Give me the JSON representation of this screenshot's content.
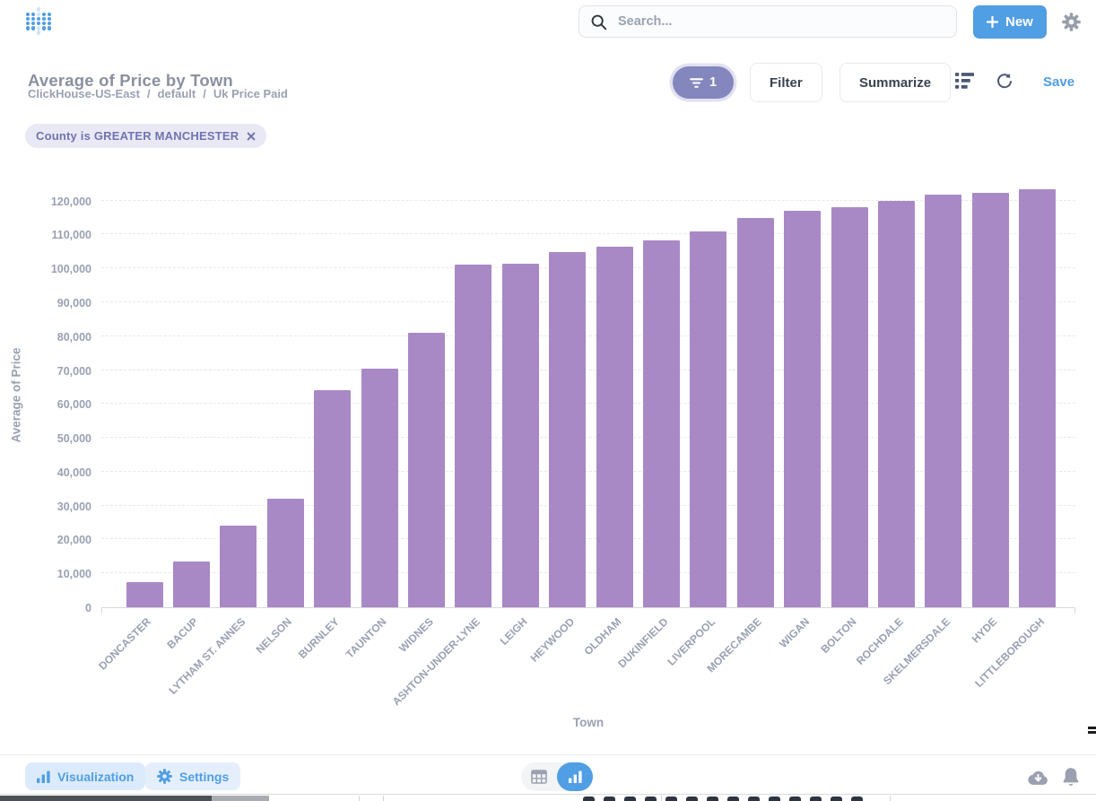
{
  "topnav": {
    "search_placeholder": "Search...",
    "new_button": "New"
  },
  "header": {
    "title": "Average of Price by Town",
    "breadcrumb": {
      "database": "ClickHouse-US-East",
      "schema": "default",
      "table": "Uk Price Paid"
    },
    "breadcrumb_sep": "/",
    "filter_count": "1",
    "filter_button": "Filter",
    "summarize_button": "Summarize",
    "save_button": "Save"
  },
  "filters": [
    {
      "label": "County is GREATER MANCHESTER"
    }
  ],
  "chart_data": {
    "type": "bar",
    "title": "Average of Price by Town",
    "xlabel": "Town",
    "ylabel": "Average of Price",
    "categories": [
      "DONCASTER",
      "BACUP",
      "LYTHAM ST. ANNES",
      "NELSON",
      "BURNLEY",
      "TAUNTON",
      "WIDNES",
      "ASHTON-UNDER-LYNE",
      "LEIGH",
      "HEYWOOD",
      "OLDHAM",
      "DUKINFIELD",
      "LIVERPOOL",
      "MORECAMBE",
      "WIGAN",
      "BOLTON",
      "ROCHDALE",
      "SKELMERSDALE",
      "HYDE",
      "LITTLEBOROUGH"
    ],
    "values": [
      7300,
      13500,
      24200,
      32000,
      64000,
      70500,
      81000,
      101200,
      101500,
      104900,
      106500,
      108300,
      110800,
      115000,
      117000,
      118000,
      119800,
      121700,
      122400,
      123400
    ],
    "ylim": [
      0,
      126000
    ],
    "ytick_step": 10000,
    "ytick_max": 120000,
    "bar_color": "#A989C5",
    "grid": true,
    "legend": "none"
  },
  "footer": {
    "visualization_button": "Visualization",
    "settings_button": "Settings"
  },
  "colors": {
    "brand": "#509EE3",
    "bar": "#A989C5",
    "filter_purple": "#8487bd",
    "axis_text": "#99a0b2"
  }
}
